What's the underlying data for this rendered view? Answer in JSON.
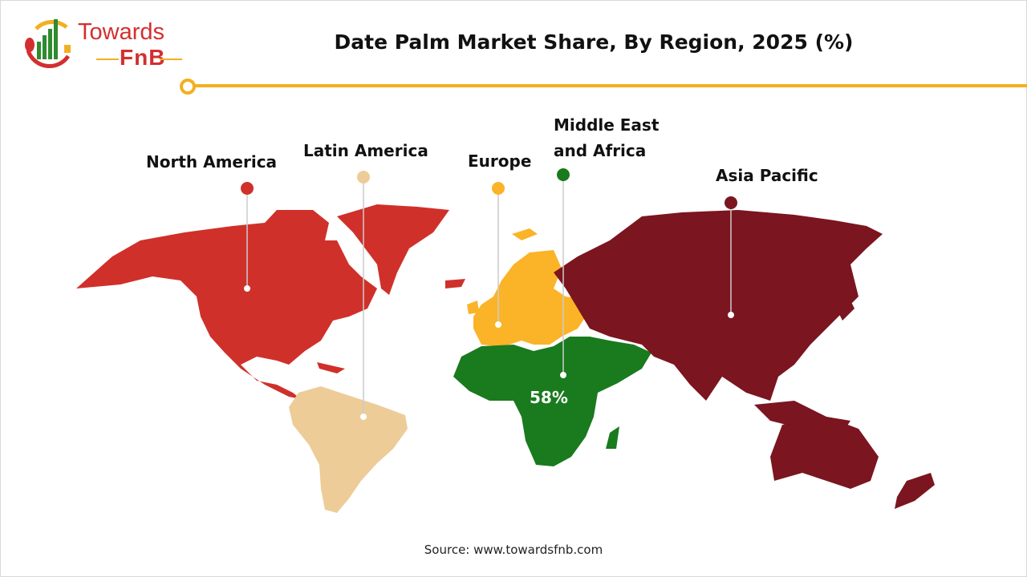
{
  "header": {
    "title": "Date Palm Market Share, By Region, 2025 (%)"
  },
  "logo": {
    "line1": "Towards",
    "line2": "FnB"
  },
  "regions": [
    {
      "name": "North America",
      "color": "#d0302a"
    },
    {
      "name": "Latin America",
      "color": "#edcc98"
    },
    {
      "name": "Europe",
      "color": "#fbb328"
    },
    {
      "name": "Middle East and Africa",
      "line1": "Middle East",
      "line2": "and Africa",
      "color": "#1a7a1e",
      "share": "58%"
    },
    {
      "name": "Asia Pacific",
      "color": "#7b1520"
    }
  ],
  "accent": "#f2b021",
  "footer": {
    "source": "Source: www.towardsfnb.com"
  }
}
